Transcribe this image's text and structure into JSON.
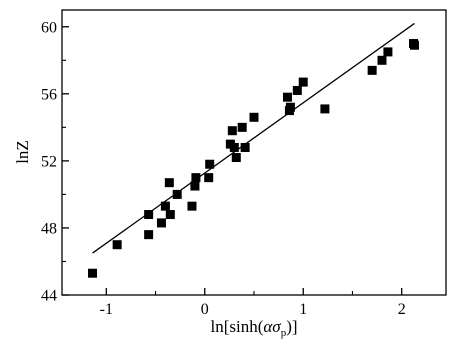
{
  "chart_data": {
    "type": "scatter",
    "title": "",
    "ylabel": "lnZ",
    "xlabel": {
      "prefix": "ln[sinh(",
      "alpha": "α",
      "sigma": "σ",
      "subscript": "p",
      "suffix": ")]"
    },
    "xlim": [
      -1.45,
      2.45
    ],
    "ylim": [
      44,
      61
    ],
    "xticks": [
      {
        "value": -1,
        "label": "-1"
      },
      {
        "value": 0,
        "label": "0"
      },
      {
        "value": 1,
        "label": "1"
      },
      {
        "value": 2,
        "label": "2"
      }
    ],
    "yticks": [
      {
        "value": 44,
        "label": "44"
      },
      {
        "value": 48,
        "label": "48"
      },
      {
        "value": 52,
        "label": "52"
      },
      {
        "value": 56,
        "label": "56"
      },
      {
        "value": 60,
        "label": "60"
      }
    ],
    "grid": false,
    "legend": "none",
    "marker_color": "#000000",
    "series": [
      {
        "marker": "square",
        "points": [
          [
            -1.14,
            45.3
          ],
          [
            -0.89,
            47.0
          ],
          [
            -0.57,
            47.6
          ],
          [
            -0.57,
            48.8
          ],
          [
            -0.44,
            48.3
          ],
          [
            -0.4,
            49.3
          ],
          [
            -0.36,
            50.7
          ],
          [
            -0.35,
            48.8
          ],
          [
            -0.28,
            50.0
          ],
          [
            -0.13,
            49.3
          ],
          [
            -0.1,
            50.5
          ],
          [
            -0.09,
            51.0
          ],
          [
            0.04,
            51.0
          ],
          [
            0.05,
            51.8
          ],
          [
            0.26,
            53.0
          ],
          [
            0.28,
            53.8
          ],
          [
            0.3,
            52.8
          ],
          [
            0.32,
            52.2
          ],
          [
            0.38,
            54.0
          ],
          [
            0.41,
            52.8
          ],
          [
            0.5,
            54.6
          ],
          [
            0.84,
            55.8
          ],
          [
            0.86,
            55.0
          ],
          [
            0.87,
            55.2
          ],
          [
            0.94,
            56.2
          ],
          [
            1.0,
            56.7
          ],
          [
            1.22,
            55.1
          ],
          [
            1.7,
            57.4
          ],
          [
            1.8,
            58.0
          ],
          [
            1.86,
            58.5
          ],
          [
            2.12,
            59.0
          ],
          [
            2.13,
            58.9
          ]
        ]
      }
    ],
    "fit_line": {
      "x": [
        -1.14,
        2.13
      ],
      "y": [
        46.5,
        60.2
      ]
    }
  }
}
